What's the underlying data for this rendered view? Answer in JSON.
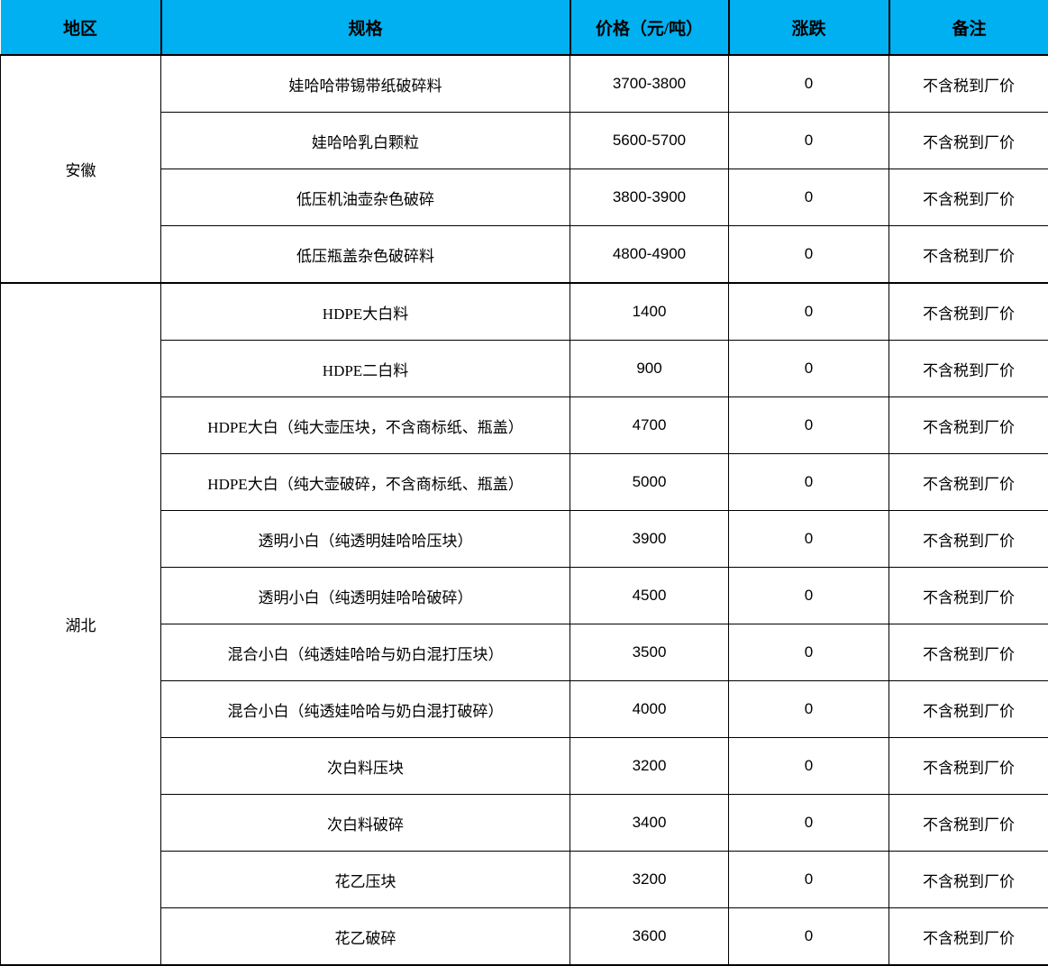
{
  "colors": {
    "header_bg": "#00b0f0",
    "border": "#000000",
    "text": "#000000"
  },
  "table": {
    "columns": [
      {
        "label": "地区"
      },
      {
        "label": "规格"
      },
      {
        "label": "价格（元/吨）"
      },
      {
        "label": "涨跌"
      },
      {
        "label": "备注"
      }
    ],
    "regions": [
      {
        "name": "安徽",
        "rows": [
          {
            "spec": "娃哈哈带锡带纸破碎料",
            "price": "3700-3800",
            "change": "0",
            "note": "不含税到厂价"
          },
          {
            "spec": "娃哈哈乳白颗粒",
            "price": "5600-5700",
            "change": "0",
            "note": "不含税到厂价"
          },
          {
            "spec": "低压机油壶杂色破碎",
            "price": "3800-3900",
            "change": "0",
            "note": "不含税到厂价"
          },
          {
            "spec": "低压瓶盖杂色破碎料",
            "price": "4800-4900",
            "change": "0",
            "note": "不含税到厂价"
          }
        ]
      },
      {
        "name": "湖北",
        "rows": [
          {
            "spec": "HDPE大白料",
            "price": "1400",
            "change": "0",
            "note": "不含税到厂价"
          },
          {
            "spec": "HDPE二白料",
            "price": "900",
            "change": "0",
            "note": "不含税到厂价"
          },
          {
            "spec": "HDPE大白（纯大壶压块，不含商标纸、瓶盖）",
            "price": "4700",
            "change": "0",
            "note": "不含税到厂价"
          },
          {
            "spec": "HDPE大白（纯大壶破碎，不含商标纸、瓶盖）",
            "price": "5000",
            "change": "0",
            "note": "不含税到厂价"
          },
          {
            "spec": "透明小白（纯透明娃哈哈压块）",
            "price": "3900",
            "change": "0",
            "note": "不含税到厂价"
          },
          {
            "spec": "透明小白（纯透明娃哈哈破碎）",
            "price": "4500",
            "change": "0",
            "note": "不含税到厂价"
          },
          {
            "spec": "混合小白（纯透娃哈哈与奶白混打压块）",
            "price": "3500",
            "change": "0",
            "note": "不含税到厂价"
          },
          {
            "spec": "混合小白（纯透娃哈哈与奶白混打破碎）",
            "price": "4000",
            "change": "0",
            "note": "不含税到厂价"
          },
          {
            "spec": "次白料压块",
            "price": "3200",
            "change": "0",
            "note": "不含税到厂价"
          },
          {
            "spec": "次白料破碎",
            "price": "3400",
            "change": "0",
            "note": "不含税到厂价"
          },
          {
            "spec": "花乙压块",
            "price": "3200",
            "change": "0",
            "note": "不含税到厂价"
          },
          {
            "spec": "花乙破碎",
            "price": "3600",
            "change": "0",
            "note": "不含税到厂价"
          }
        ]
      }
    ]
  }
}
